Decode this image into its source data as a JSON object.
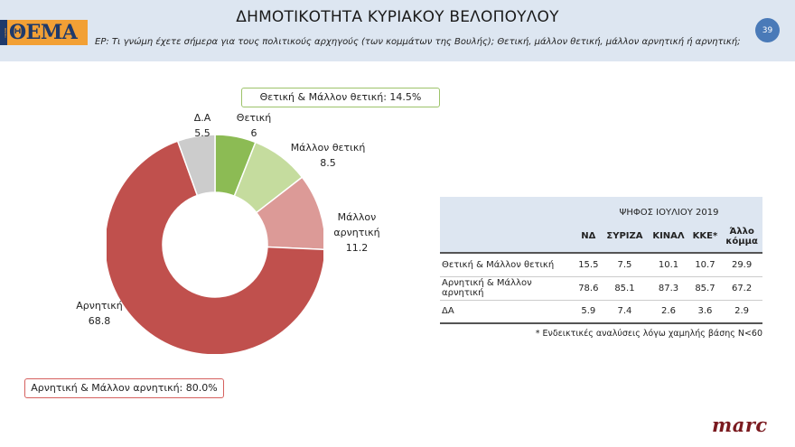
{
  "header": {
    "title": "ΔΗΜΟΤΙΚΟΤΗΤΑ ΚΥΡΙΑΚΟΥ ΒΕΛΟΠΟΥΛΟΥ",
    "logo": "ΘΕΜΑ",
    "logo_small": "ΠΡΩΤΟ",
    "question": "ΕΡ: Τι γνώμη έχετε σήμερα για τους πολιτικούς αρχηγούς (των κομμάτων της Βουλής); Θετική, μάλλον θετική, μάλλον αρνητική ή αρνητική;",
    "page_number": "39"
  },
  "callouts": {
    "positive": "Θετική & Μάλλον θετική: 14.5%",
    "negative": "Αρνητική & Μάλλον αρνητική: 80.0%"
  },
  "chart_data": [
    {
      "type": "pie",
      "subtype": "donut",
      "title": "ΔΗΜΟΤΙΚΟΤΗΤΑ ΚΥΡΙΑΚΟΥ ΒΕΛΟΠΟΥΛΟΥ",
      "categories": [
        "Θετική",
        "Μάλλον θετική",
        "Μάλλον αρνητική",
        "Αρνητική",
        "Δ.Α"
      ],
      "values": [
        6,
        8.5,
        11.2,
        68.8,
        5.5
      ],
      "colors": [
        "#8cbb54",
        "#c5dc9e",
        "#dc9a97",
        "#c0504d",
        "#cccccc"
      ],
      "annotations": [
        "Θετική & Μάλλον θετική: 14.5%",
        "Αρνητική & Μάλλον αρνητική: 80.0%"
      ]
    },
    {
      "type": "table",
      "title": "ΨΗΦΟΣ ΙΟΥΛΙΟΥ 2019",
      "columns": [
        "ΝΔ",
        "ΣΥΡΙΖΑ",
        "ΚΙΝΑΛ",
        "ΚΚΕ*",
        "Άλλο κόμμα"
      ],
      "rows": [
        {
          "label": "Θετική & Μάλλον θετική",
          "values": [
            15.5,
            7.5,
            10.1,
            10.7,
            29.9
          ]
        },
        {
          "label": "Αρνητική & Μάλλον αρνητική",
          "values": [
            78.6,
            85.1,
            87.3,
            85.7,
            67.2
          ]
        },
        {
          "label": "ΔΑ",
          "values": [
            5.9,
            7.4,
            2.6,
            3.6,
            2.9
          ]
        }
      ],
      "footnote": "* Ενδεικτικές αναλύσεις λόγω χαμηλής βάσης Ν<60"
    }
  ],
  "donut_labels": {
    "thetiki": {
      "name": "Θετική",
      "value": "6"
    },
    "mallon_thetiki": {
      "name": "Μάλλον θετική",
      "value": "8.5"
    },
    "mallon_arnitiki": {
      "name1": "Μάλλον",
      "name2": "αρνητική",
      "value": "11.2"
    },
    "arnitiki": {
      "name": "Αρνητική",
      "value": "68.8"
    },
    "da": {
      "name": "Δ.Α",
      "value": "5.5"
    }
  },
  "table": {
    "group_header": "ΨΗΦΟΣ ΙΟΥΛΙΟΥ 2019",
    "columns": [
      "ΝΔ",
      "ΣΥΡΙΖΑ",
      "ΚΙΝΑΛ",
      "ΚΚΕ*",
      "Άλλο",
      "κόμμα"
    ],
    "rows": [
      {
        "label": "Θετική & Μάλλον θετική",
        "v": [
          "15.5",
          "7.5",
          "10.1",
          "10.7",
          "29.9"
        ]
      },
      {
        "label": "Αρνητική & Μάλλον αρνητική",
        "v": [
          "78.6",
          "85.1",
          "87.3",
          "85.7",
          "67.2"
        ]
      },
      {
        "label": "ΔΑ",
        "v": [
          "5.9",
          "7.4",
          "2.6",
          "3.6",
          "2.9"
        ]
      }
    ],
    "footnote": "* Ενδεικτικές αναλύσεις λόγω χαμηλής βάσης Ν<60"
  },
  "footer": {
    "brand": "marc"
  }
}
